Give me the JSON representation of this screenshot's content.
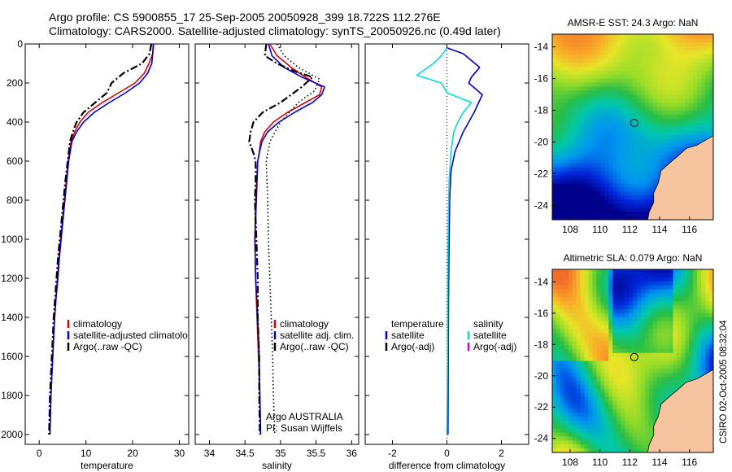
{
  "header": {
    "line1": "Argo profile: CS 5900855_17 25-Sep-2005 20050928_399 18.722S 112.276E",
    "line2": "Climatology: CARS2000. Satellite-adjusted climatology: synTS_20050926.nc (0.49d later)"
  },
  "side_label": "CSIRO 02-Oct-2005 08:32:04",
  "chart_data": [
    {
      "type": "line",
      "xlabel": "temperature",
      "ylabel": "",
      "xlim": [
        -3,
        32
      ],
      "ylim": [
        2050,
        0
      ],
      "xticks": [
        0,
        10,
        20,
        30
      ],
      "yticks": [
        0,
        200,
        400,
        600,
        800,
        1000,
        1200,
        1400,
        1600,
        1800,
        2000
      ],
      "legend": [
        "climatology",
        "satellite-adjusted climatolo",
        "Argo(..raw -QC)"
      ],
      "legend_colors": [
        "#dd0000",
        "#0000dd",
        "#000000"
      ],
      "legend_placement": "lower-right",
      "series": [
        {
          "name": "climatology",
          "color": "#dd0000",
          "dash": "solid",
          "points": [
            [
              24.5,
              0
            ],
            [
              24.3,
              50
            ],
            [
              23.5,
              100
            ],
            [
              22.5,
              150
            ],
            [
              20.5,
              200
            ],
            [
              17,
              250
            ],
            [
              13.5,
              300
            ],
            [
              10.5,
              350
            ],
            [
              8.7,
              400
            ],
            [
              7.6,
              450
            ],
            [
              6.8,
              500
            ],
            [
              6.2,
              600
            ],
            [
              5.8,
              700
            ],
            [
              5.4,
              800
            ],
            [
              5.0,
              900
            ],
            [
              4.6,
              1000
            ],
            [
              4.2,
              1100
            ],
            [
              3.9,
              1200
            ],
            [
              3.6,
              1300
            ],
            [
              3.3,
              1400
            ],
            [
              3.1,
              1500
            ],
            [
              2.9,
              1600
            ],
            [
              2.7,
              1700
            ],
            [
              2.5,
              1800
            ],
            [
              2.4,
              1900
            ],
            [
              2.3,
              2000
            ]
          ]
        },
        {
          "name": "satellite-adjusted climatology",
          "color": "#0000dd",
          "dash": "solid",
          "points": [
            [
              24.4,
              0
            ],
            [
              24.3,
              50
            ],
            [
              24.1,
              100
            ],
            [
              23.2,
              150
            ],
            [
              21.5,
              200
            ],
            [
              18.5,
              250
            ],
            [
              15,
              300
            ],
            [
              11.8,
              350
            ],
            [
              9.5,
              400
            ],
            [
              8,
              450
            ],
            [
              7,
              500
            ],
            [
              6.3,
              600
            ],
            [
              5.9,
              700
            ],
            [
              5.5,
              800
            ],
            [
              5.1,
              900
            ],
            [
              4.7,
              1000
            ],
            [
              4.3,
              1100
            ],
            [
              4.0,
              1200
            ],
            [
              3.6,
              1300
            ],
            [
              3.3,
              1400
            ],
            [
              3.1,
              1500
            ],
            [
              2.9,
              1600
            ],
            [
              2.7,
              1700
            ],
            [
              2.5,
              1800
            ],
            [
              2.4,
              1900
            ],
            [
              2.3,
              2000
            ]
          ]
        },
        {
          "name": "Argo(..raw -QC)",
          "color": "#000000",
          "dash": "dashdot",
          "points": [
            [
              24,
              0
            ],
            [
              23.6,
              50
            ],
            [
              22,
              100
            ],
            [
              18,
              150
            ],
            [
              15.5,
              200
            ],
            [
              14.5,
              250
            ],
            [
              12,
              300
            ],
            [
              9.5,
              350
            ],
            [
              8,
              400
            ],
            [
              7.2,
              450
            ],
            [
              6.6,
              500
            ],
            [
              6.1,
              600
            ],
            [
              5.6,
              700
            ],
            [
              5.2,
              800
            ],
            [
              4.8,
              900
            ],
            [
              4.4,
              1000
            ],
            [
              4.0,
              1100
            ],
            [
              3.7,
              1200
            ],
            [
              3.4,
              1300
            ],
            [
              3.1,
              1400
            ],
            [
              2.9,
              1500
            ],
            [
              2.7,
              1600
            ],
            [
              2.5,
              1700
            ],
            [
              2.3,
              1800
            ],
            [
              2.2,
              1900
            ],
            [
              2.1,
              2000
            ]
          ]
        }
      ]
    },
    {
      "type": "line",
      "xlabel": "salinity",
      "ylabel": "",
      "xlim": [
        33.8,
        36.1
      ],
      "ylim": [
        2050,
        0
      ],
      "xticks": [
        34,
        34.5,
        35,
        35.5,
        36
      ],
      "yticks": [
        0,
        200,
        400,
        600,
        800,
        1000,
        1200,
        1400,
        1600,
        1800,
        2000
      ],
      "legend": [
        "climatology",
        "satellite adj. clim.",
        "Argo(..raw -QC)"
      ],
      "legend_colors": [
        "#dd0000",
        "#0000dd",
        "#000000"
      ],
      "legend_placement": "lower-right",
      "annotations": [
        "Argo AUSTRALIA",
        "PI: Susan Wijffels"
      ],
      "series": [
        {
          "name": "climatology",
          "color": "#dd0000",
          "dash": "solid",
          "points": [
            [
              34.85,
              0
            ],
            [
              34.95,
              60
            ],
            [
              35.15,
              120
            ],
            [
              35.35,
              170
            ],
            [
              35.58,
              220
            ],
            [
              35.55,
              260
            ],
            [
              35.35,
              300
            ],
            [
              35.1,
              350
            ],
            [
              34.9,
              400
            ],
            [
              34.78,
              450
            ],
            [
              34.72,
              500
            ],
            [
              34.7,
              560
            ],
            [
              34.68,
              600
            ],
            [
              34.65,
              800
            ],
            [
              34.64,
              1000
            ],
            [
              34.65,
              1200
            ],
            [
              34.67,
              1400
            ],
            [
              34.69,
              1600
            ],
            [
              34.71,
              1800
            ],
            [
              34.72,
              2000
            ]
          ]
        },
        {
          "name": "satellite adj. clim.",
          "color": "#0000dd",
          "dash": "solid",
          "points": [
            [
              34.83,
              0
            ],
            [
              34.88,
              60
            ],
            [
              35.05,
              120
            ],
            [
              35.3,
              170
            ],
            [
              35.62,
              220
            ],
            [
              35.58,
              260
            ],
            [
              35.45,
              300
            ],
            [
              35.2,
              350
            ],
            [
              34.98,
              400
            ],
            [
              34.82,
              450
            ],
            [
              34.74,
              500
            ],
            [
              34.7,
              560
            ],
            [
              34.68,
              600
            ],
            [
              34.66,
              800
            ],
            [
              34.64,
              1000
            ],
            [
              34.65,
              1200
            ],
            [
              34.68,
              1400
            ],
            [
              34.7,
              1600
            ],
            [
              34.71,
              1800
            ],
            [
              34.72,
              2000
            ]
          ]
        },
        {
          "name": "Argo(..raw -QC)",
          "color": "#000000",
          "dash": "dashdot",
          "points": [
            [
              34.8,
              0
            ],
            [
              34.78,
              60
            ],
            [
              34.95,
              100
            ],
            [
              35.2,
              140
            ],
            [
              35.45,
              170
            ],
            [
              35.3,
              220
            ],
            [
              35.0,
              300
            ],
            [
              34.75,
              350
            ],
            [
              34.62,
              400
            ],
            [
              34.58,
              450
            ],
            [
              34.56,
              500
            ],
            [
              34.62,
              560
            ],
            [
              34.65,
              600
            ],
            [
              34.65,
              700
            ],
            [
              34.64,
              800
            ],
            [
              34.66,
              1000
            ],
            [
              34.68,
              1200
            ],
            [
              34.68,
              1400
            ],
            [
              34.7,
              1600
            ],
            [
              34.7,
              1800
            ],
            [
              34.71,
              2000
            ]
          ]
        },
        {
          "name": "",
          "color": "#000000",
          "dash": "dotted",
          "points": [
            [
              34.95,
              0
            ],
            [
              35.05,
              60
            ],
            [
              35.25,
              120
            ],
            [
              35.55,
              180
            ],
            [
              35.48,
              240
            ],
            [
              35.25,
              300
            ],
            [
              35.0,
              400
            ],
            [
              34.85,
              500
            ],
            [
              34.8,
              600
            ],
            [
              34.82,
              800
            ],
            [
              34.83,
              1000
            ],
            [
              34.85,
              1200
            ],
            [
              34.87,
              1400
            ],
            [
              34.89,
              1600
            ],
            [
              34.9,
              1800
            ],
            [
              34.92,
              2000
            ]
          ]
        }
      ]
    },
    {
      "type": "line",
      "xlabel": "difference from climatology",
      "ylabel": "",
      "xlim": [
        -3,
        3
      ],
      "ylim": [
        2050,
        0
      ],
      "xticks": [
        -2,
        0,
        2
      ],
      "yticks": [
        0,
        200,
        400,
        600,
        800,
        1000,
        1200,
        1400,
        1600,
        1800,
        2000
      ],
      "legend_headers": [
        "temperature",
        "salinity"
      ],
      "legend_temperature": [
        "satellite",
        "Argo(-adj)"
      ],
      "legend_temperature_colors": [
        "#0000dd",
        "#000000"
      ],
      "legend_salinity": [
        "satellite",
        "Argo(-adj)"
      ],
      "legend_salinity_colors": [
        "#00dddd",
        "#dd00dd"
      ],
      "legend_placement": "lower-center",
      "series": [
        {
          "name": "temperature satellite",
          "color": "#0000cc",
          "dash": "solid",
          "points": [
            [
              0,
              20
            ],
            [
              0.6,
              50
            ],
            [
              1.2,
              120
            ],
            [
              0.9,
              170
            ],
            [
              0.8,
              200
            ],
            [
              1.3,
              260
            ],
            [
              1.0,
              350
            ],
            [
              0.6,
              450
            ],
            [
              0.3,
              550
            ],
            [
              0.15,
              650
            ],
            [
              0.1,
              800
            ],
            [
              0.08,
              1000
            ],
            [
              0.06,
              1300
            ],
            [
              0.05,
              1600
            ],
            [
              0.04,
              2000
            ]
          ]
        },
        {
          "name": "salinity satellite",
          "color": "#00dddd",
          "dash": "solid",
          "points": [
            [
              0,
              20
            ],
            [
              -0.2,
              60
            ],
            [
              -0.5,
              100
            ],
            [
              -1.1,
              160
            ],
            [
              -0.2,
              200
            ],
            [
              0.0,
              250
            ],
            [
              0.9,
              300
            ],
            [
              0.6,
              350
            ],
            [
              0.4,
              400
            ],
            [
              0.25,
              450
            ],
            [
              0.15,
              550
            ],
            [
              0.08,
              700
            ],
            [
              0.05,
              900
            ],
            [
              0.03,
              1200
            ],
            [
              0.02,
              1600
            ],
            [
              0.0,
              2000
            ]
          ]
        }
      ],
      "zero_line": 0
    }
  ],
  "maps": [
    {
      "title": "AMSR-E SST: 24.3 Argo: NaN",
      "xticks": [
        108,
        110,
        112,
        114,
        116
      ],
      "yticks": [
        -14,
        -16,
        -18,
        -20,
        -22,
        -24
      ],
      "xlim": [
        106.8,
        117.6
      ],
      "ylim": [
        -24.9,
        -13.2
      ],
      "marker": [
        112.3,
        -18.8
      ]
    },
    {
      "title": "Altimetric SLA: 0.079 Argo: NaN",
      "xticks": [
        108,
        110,
        112,
        114,
        116
      ],
      "yticks": [
        -14,
        -16,
        -18,
        -20,
        -22,
        -24
      ],
      "xlim": [
        106.8,
        117.6
      ],
      "ylim": [
        -24.9,
        -13.2
      ],
      "marker": [
        112.3,
        -18.8
      ]
    }
  ]
}
